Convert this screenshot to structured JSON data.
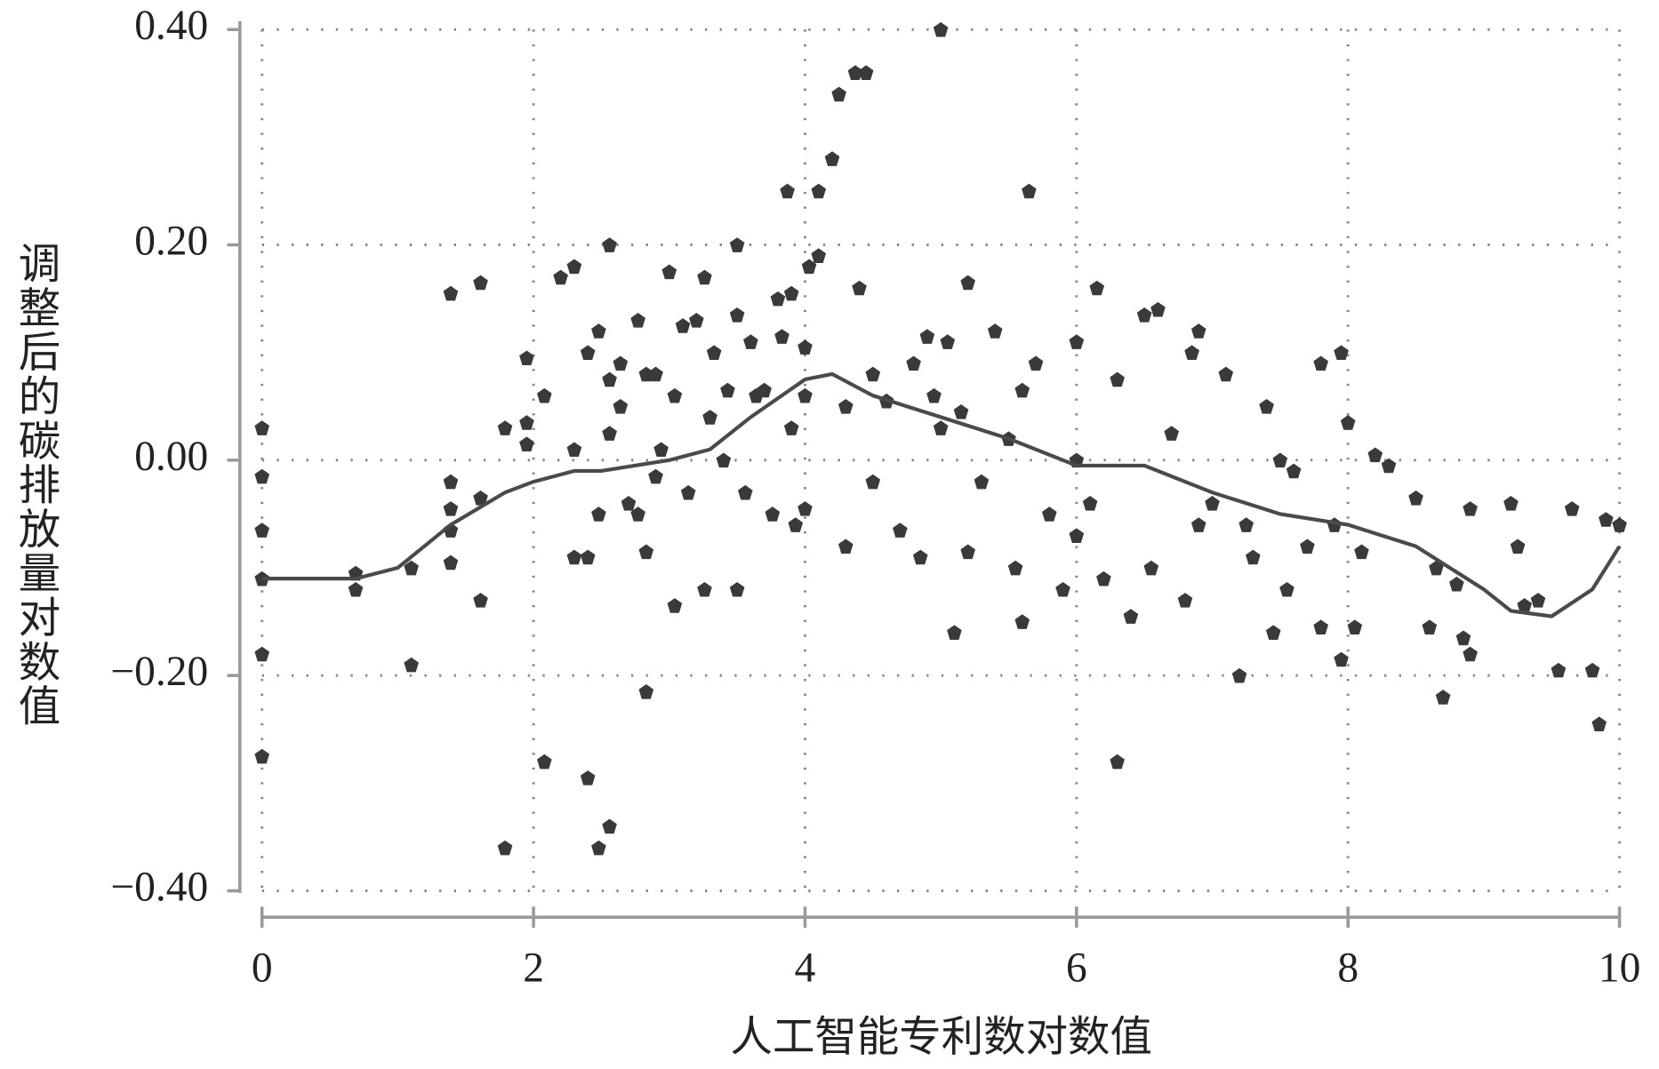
{
  "chart_data": {
    "type": "scatter",
    "x_label": "人工智能专利数对数值",
    "y_label": "调整后的碳排放量对数值",
    "xlim": [
      0,
      10
    ],
    "ylim": [
      -0.4,
      0.4
    ],
    "xticks": [
      0,
      2,
      4,
      6,
      8,
      10
    ],
    "yticks": [
      {
        "value": -0.4,
        "label": "−0.40"
      },
      {
        "value": -0.2,
        "label": "−0.20"
      },
      {
        "value": 0,
        "label": "0.00"
      },
      {
        "value": 0.2,
        "label": "0.20"
      },
      {
        "value": 0.4,
        "label": "0.40"
      }
    ],
    "grid": true,
    "series": [
      {
        "type": "scatter",
        "color": "#3a3a3a",
        "x": [
          0,
          0,
          0,
          0,
          0,
          0,
          0.69,
          0.69,
          1.1,
          1.1,
          1.39,
          1.39,
          1.39,
          1.39,
          1.39,
          1.61,
          1.61,
          1.61,
          1.79,
          1.79,
          1.95,
          1.95,
          1.95,
          2.08,
          2.08,
          2.2,
          2.3,
          2.3,
          2.3,
          2.4,
          2.4,
          2.4,
          2.48,
          2.48,
          2.48,
          2.56,
          2.56,
          2.56,
          2.56,
          2.64,
          2.64,
          2.7,
          2.77,
          2.77,
          2.83,
          2.83,
          2.83,
          2.9,
          2.9,
          2.94,
          3.0,
          3.04,
          3.04,
          3.1,
          3.14,
          3.2,
          3.26,
          3.26,
          3.3,
          3.33,
          3.4,
          3.43,
          3.5,
          3.5,
          3.5,
          3.56,
          3.6,
          3.64,
          3.7,
          3.76,
          3.8,
          3.83,
          3.87,
          3.9,
          3.9,
          3.93,
          4.0,
          4.0,
          4.0,
          4.03,
          4.1,
          4.1,
          4.2,
          4.25,
          4.3,
          4.3,
          4.37,
          4.4,
          4.45,
          4.5,
          4.5,
          4.6,
          4.7,
          4.8,
          4.85,
          4.9,
          4.95,
          5.0,
          5.0,
          5.05,
          5.1,
          5.15,
          5.2,
          5.2,
          5.3,
          5.4,
          5.5,
          5.55,
          5.6,
          5.6,
          5.65,
          5.7,
          5.8,
          5.9,
          6.0,
          6.0,
          6.0,
          6.1,
          6.15,
          6.2,
          6.3,
          6.3,
          6.4,
          6.5,
          6.55,
          6.6,
          6.7,
          6.8,
          6.85,
          6.9,
          6.9,
          7.0,
          7.1,
          7.2,
          7.25,
          7.3,
          7.4,
          7.45,
          7.5,
          7.55,
          7.6,
          7.7,
          7.8,
          7.8,
          7.9,
          7.95,
          7.95,
          8.0,
          8.05,
          8.1,
          8.2,
          8.3,
          8.5,
          8.6,
          8.65,
          8.7,
          8.8,
          8.85,
          8.9,
          8.9,
          9.2,
          9.25,
          9.3,
          9.4,
          9.55,
          9.65,
          9.8,
          9.85,
          9.9,
          10.0
        ],
        "values": [
          0.03,
          -0.015,
          -0.065,
          -0.11,
          -0.18,
          -0.275,
          -0.105,
          -0.12,
          -0.1,
          -0.19,
          0.155,
          -0.02,
          -0.045,
          -0.065,
          -0.095,
          0.165,
          -0.035,
          -0.13,
          0.03,
          -0.36,
          0.095,
          0.035,
          0.015,
          0.06,
          -0.28,
          0.17,
          0.18,
          0.01,
          -0.09,
          -0.09,
          -0.295,
          0.1,
          0.12,
          -0.05,
          -0.36,
          0.2,
          -0.34,
          0.075,
          0.025,
          0.09,
          0.05,
          -0.04,
          0.13,
          -0.05,
          0.08,
          -0.215,
          -0.085,
          -0.015,
          0.08,
          0.01,
          0.175,
          0.06,
          -0.135,
          0.125,
          -0.03,
          0.13,
          0.17,
          -0.12,
          0.04,
          0.1,
          0.0,
          0.065,
          0.2,
          0.135,
          -0.12,
          -0.03,
          0.11,
          0.06,
          0.065,
          -0.05,
          0.15,
          0.115,
          0.25,
          0.155,
          0.03,
          -0.06,
          0.105,
          0.06,
          -0.045,
          0.18,
          0.19,
          0.25,
          0.28,
          0.34,
          0.05,
          -0.08,
          0.36,
          0.16,
          0.36,
          0.08,
          -0.02,
          0.055,
          -0.065,
          0.09,
          -0.09,
          0.115,
          0.06,
          0.4,
          0.03,
          0.11,
          -0.16,
          0.045,
          0.165,
          -0.085,
          -0.02,
          0.12,
          0.02,
          -0.1,
          -0.15,
          0.065,
          0.25,
          0.09,
          -0.05,
          -0.12,
          0.11,
          0.0,
          -0.07,
          -0.04,
          0.16,
          -0.11,
          -0.28,
          0.075,
          -0.145,
          0.135,
          -0.1,
          0.14,
          0.025,
          -0.13,
          0.1,
          0.12,
          -0.06,
          -0.04,
          0.08,
          -0.2,
          -0.06,
          -0.09,
          0.05,
          -0.16,
          0.0,
          -0.12,
          -0.01,
          -0.08,
          0.09,
          -0.155,
          -0.06,
          0.1,
          -0.185,
          0.035,
          -0.155,
          -0.085,
          0.005,
          -0.005,
          -0.035,
          -0.155,
          -0.1,
          -0.22,
          -0.115,
          -0.165,
          -0.18,
          -0.045,
          -0.04,
          -0.08,
          -0.135,
          -0.13,
          -0.195,
          -0.045,
          -0.195,
          -0.245,
          -0.055,
          -0.06
        ]
      },
      {
        "type": "line",
        "color": "#4a4a4a",
        "x": [
          0,
          0.69,
          1,
          1.39,
          1.79,
          2,
          2.3,
          2.5,
          3,
          3.3,
          3.6,
          4,
          4.2,
          4.5,
          5,
          5.5,
          6,
          6.5,
          7,
          7.5,
          8,
          8.5,
          9,
          9.2,
          9.5,
          9.8,
          10
        ],
        "values": [
          -0.11,
          -0.11,
          -0.1,
          -0.06,
          -0.03,
          -0.02,
          -0.01,
          -0.01,
          0.0,
          0.01,
          0.04,
          0.075,
          0.08,
          0.06,
          0.04,
          0.02,
          -0.005,
          -0.005,
          -0.03,
          -0.05,
          -0.06,
          -0.08,
          -0.12,
          -0.14,
          -0.145,
          -0.12,
          -0.08
        ]
      }
    ]
  }
}
